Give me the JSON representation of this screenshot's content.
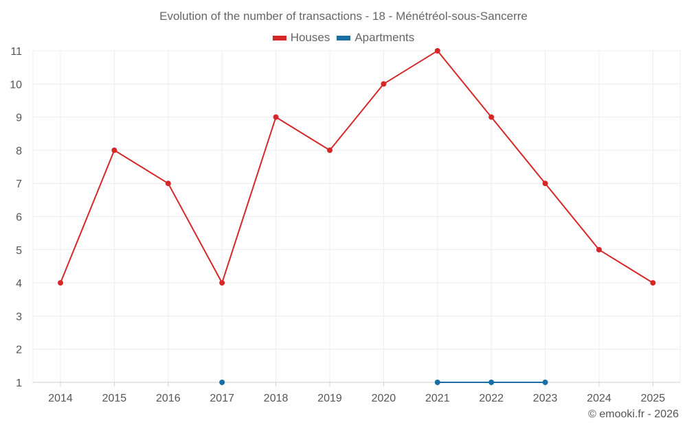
{
  "chart_data": {
    "type": "line",
    "title": "Evolution of the number of transactions - 18 - Ménétréol-sous-Sancerre",
    "x": [
      2014,
      2015,
      2016,
      2017,
      2018,
      2019,
      2020,
      2021,
      2022,
      2023,
      2024,
      2025
    ],
    "x_tick_labels": [
      "2014",
      "2015",
      "2016",
      "2017",
      "2018",
      "2019",
      "2020",
      "2021",
      "2022",
      "2023",
      "2024",
      "2025"
    ],
    "y_tick_labels": [
      "1",
      "2",
      "3",
      "4",
      "5",
      "6",
      "7",
      "8",
      "9",
      "10",
      "11"
    ],
    "ylim": [
      1,
      11
    ],
    "grid": true,
    "legend_position": "top-center",
    "series": [
      {
        "name": "Houses",
        "color": "#d62728",
        "values": [
          4,
          8,
          7,
          4,
          9,
          8,
          10,
          11,
          9,
          7,
          5,
          4
        ]
      },
      {
        "name": "Apartments",
        "color": "#1a6fa5",
        "values": [
          null,
          null,
          null,
          1,
          null,
          null,
          null,
          1,
          1,
          1,
          null,
          null
        ]
      }
    ]
  },
  "footer": {
    "credit": "© emooki.fr - 2026"
  }
}
